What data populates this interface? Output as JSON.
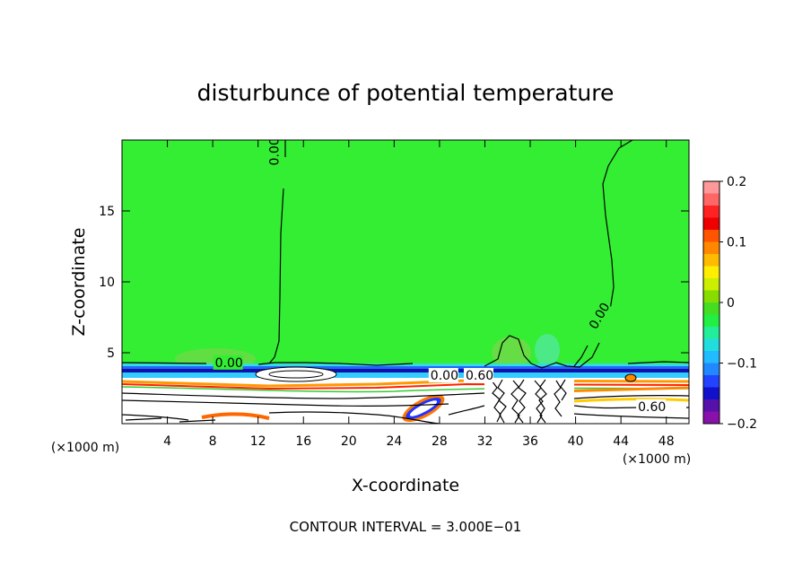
{
  "chart_data": {
    "type": "heatmap",
    "title": "disturbunce of potential temperature",
    "xlabel": "X-coordinate",
    "ylabel": "Z-coordinate",
    "x_unit": "(×1000 m)",
    "z_unit": "(×1000 m)",
    "xlim": [
      0,
      50
    ],
    "ylim": [
      0,
      20
    ],
    "x_ticks": [
      4,
      8,
      12,
      16,
      20,
      24,
      28,
      32,
      36,
      40,
      44,
      48
    ],
    "y_ticks": [
      5,
      10,
      15
    ],
    "colorbar": {
      "min": -0.2,
      "max": 0.2,
      "tick_values": [
        0.2,
        0.1,
        0,
        -0.1,
        -0.2
      ],
      "tick_labels": [
        "0.2",
        "0.1",
        "0",
        "−0.1",
        "−0.2"
      ]
    },
    "contour_interval_text": "CONTOUR INTERVAL = 3.000E−01",
    "contour_labels": [
      {
        "text": "0.00",
        "x": 13.8,
        "z": 18.2
      },
      {
        "text": "0.00",
        "x": 8.2,
        "z": 4.0
      },
      {
        "text": "0.00",
        "x": 41.8,
        "z": 6.6
      },
      {
        "text": "0.00",
        "x": 27.2,
        "z": 3.1
      },
      {
        "text": "0.60",
        "x": 30.3,
        "z": 3.1
      },
      {
        "text": "0.60",
        "x": 45.5,
        "z": 0.9
      }
    ],
    "background_value": 0.0
  },
  "colors": {
    "background_field": "#33ee33",
    "warm_bump": "#66dd44",
    "contour": "#000000"
  }
}
